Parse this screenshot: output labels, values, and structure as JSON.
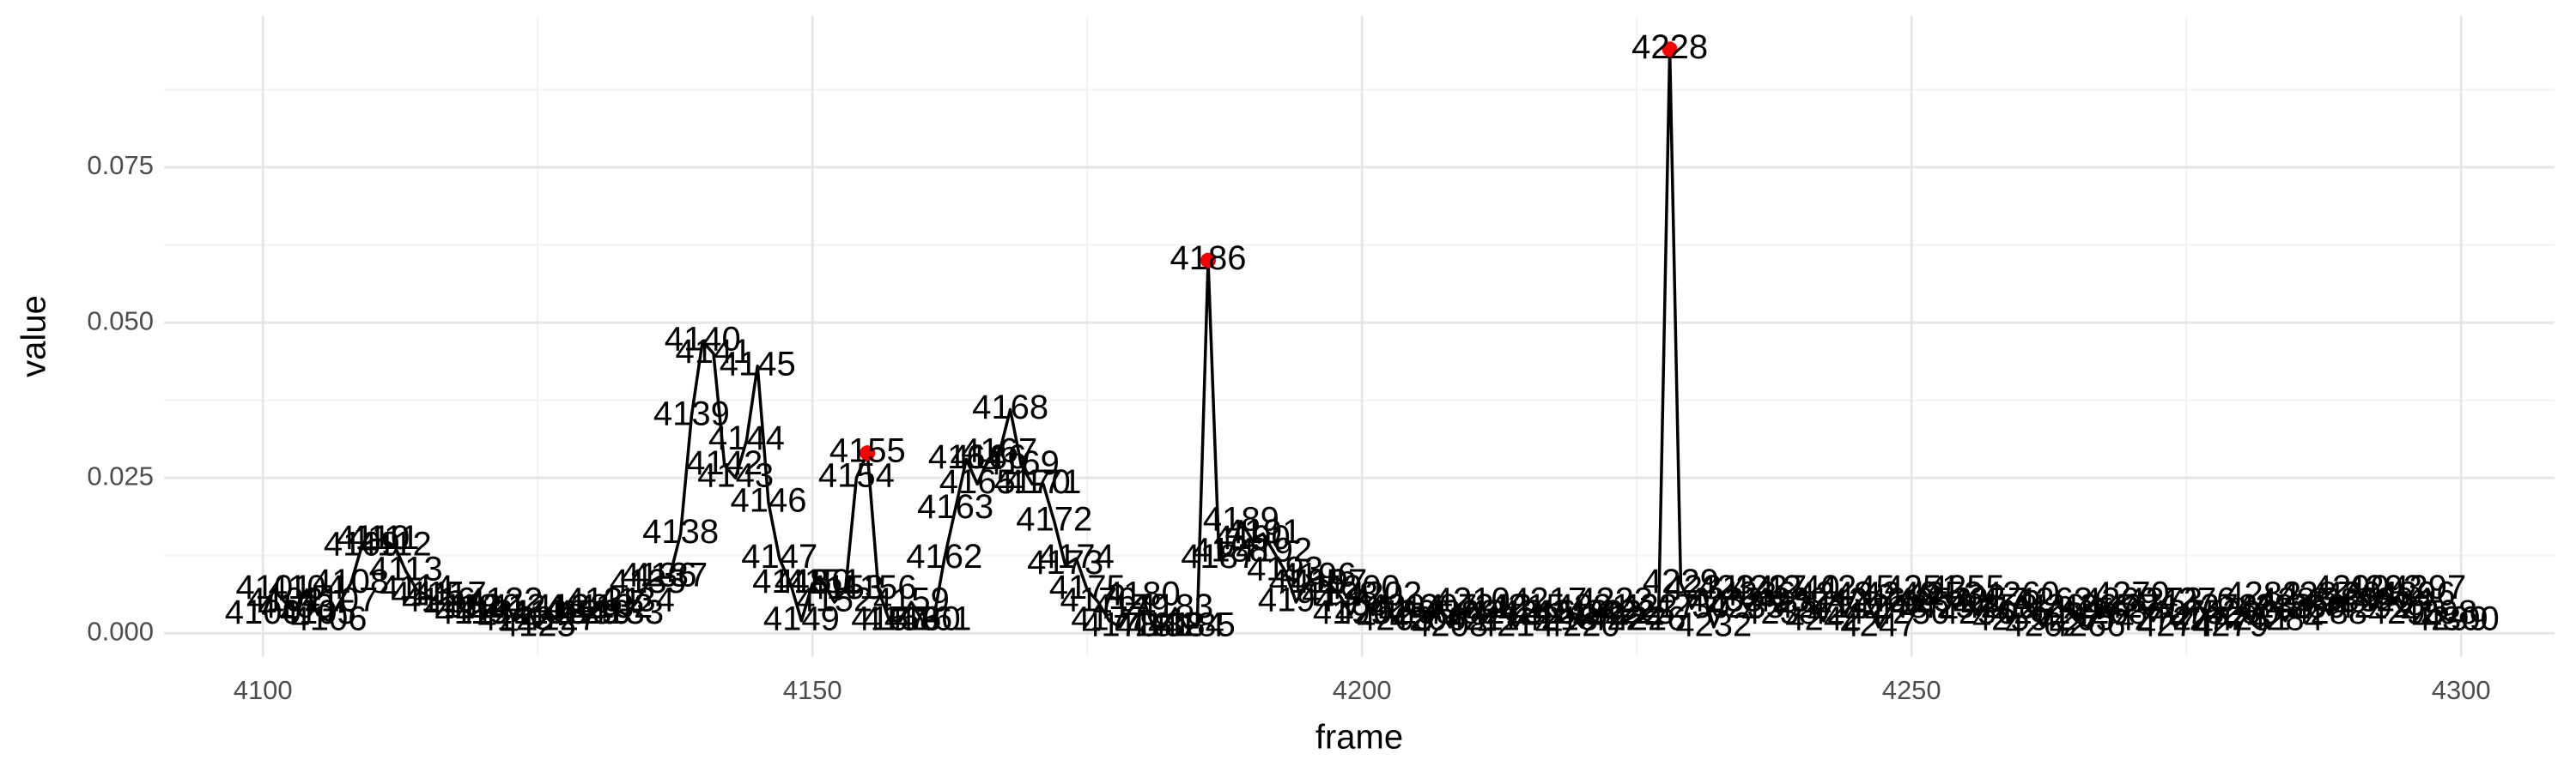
{
  "chart_data": {
    "type": "line",
    "x_label": "frame",
    "y_label": "value",
    "x": [
      4100,
      4101,
      4102,
      4103,
      4104,
      4105,
      4106,
      4107,
      4108,
      4109,
      4110,
      4111,
      4112,
      4113,
      4114,
      4115,
      4116,
      4117,
      4118,
      4119,
      4120,
      4121,
      4122,
      4123,
      4124,
      4125,
      4126,
      4127,
      4128,
      4129,
      4130,
      4131,
      4132,
      4133,
      4134,
      4135,
      4136,
      4137,
      4138,
      4139,
      4140,
      4141,
      4142,
      4143,
      4144,
      4145,
      4146,
      4147,
      4148,
      4149,
      4150,
      4151,
      4152,
      4153,
      4154,
      4155,
      4156,
      4157,
      4158,
      4159,
      4160,
      4161,
      4162,
      4163,
      4164,
      4165,
      4166,
      4167,
      4168,
      4169,
      4170,
      4171,
      4172,
      4173,
      4174,
      4175,
      4176,
      4177,
      4178,
      4179,
      4180,
      4181,
      4182,
      4183,
      4184,
      4185,
      4186,
      4187,
      4188,
      4189,
      4190,
      4191,
      4192,
      4193,
      4194,
      4195,
      4196,
      4197,
      4198,
      4199,
      4200,
      4201,
      4202,
      4203,
      4204,
      4205,
      4206,
      4207,
      4208,
      4209,
      4210,
      4211,
      4212,
      4213,
      4214,
      4215,
      4216,
      4217,
      4218,
      4219,
      4220,
      4221,
      4222,
      4223,
      4224,
      4225,
      4226,
      4227,
      4228,
      4229,
      4230,
      4231,
      4232,
      4233,
      4234,
      4235,
      4236,
      4237,
      4238,
      4239,
      4240,
      4241,
      4242,
      4243,
      4244,
      4245,
      4246,
      4247,
      4248,
      4249,
      4250,
      4251,
      4252,
      4253,
      4254,
      4255,
      4256,
      4257,
      4258,
      4259,
      4260,
      4261,
      4262,
      4263,
      4264,
      4265,
      4266,
      4267,
      4268,
      4269,
      4270,
      4271,
      4272,
      4273,
      4274,
      4275,
      4276,
      4277,
      4278,
      4279,
      4280,
      4281,
      4282,
      4283,
      4284,
      4285,
      4286,
      4287,
      4288,
      4289,
      4290,
      4291,
      4292,
      4293,
      4294,
      4295,
      4296,
      4297,
      4298,
      4299,
      4300
    ],
    "values": [
      0.003,
      0.007,
      0.005,
      0.004,
      0.007,
      0.003,
      0.002,
      0.005,
      0.008,
      0.014,
      0.015,
      0.015,
      0.014,
      0.01,
      0.007,
      0.006,
      0.005,
      0.006,
      0.004,
      0.003,
      0.004,
      0.003,
      0.005,
      0.002,
      0.004,
      0.001,
      0.003,
      0.002,
      0.004,
      0.003,
      0.003,
      0.005,
      0.004,
      0.003,
      0.005,
      0.008,
      0.009,
      0.009,
      0.016,
      0.035,
      0.047,
      0.045,
      0.027,
      0.025,
      0.031,
      0.043,
      0.021,
      0.012,
      0.008,
      0.002,
      0.008,
      0.008,
      0.005,
      0.007,
      0.025,
      0.029,
      0.007,
      0.002,
      0.002,
      0.005,
      0.002,
      0.002,
      0.012,
      0.02,
      0.028,
      0.024,
      0.028,
      0.029,
      0.036,
      0.027,
      0.024,
      0.024,
      0.018,
      0.011,
      0.012,
      0.007,
      0.005,
      0.002,
      0.001,
      0.004,
      0.006,
      0.001,
      0.001,
      0.004,
      0.001,
      0.001,
      0.06,
      0.012,
      0.013,
      0.018,
      0.015,
      0.016,
      0.013,
      0.01,
      0.005,
      0.008,
      0.009,
      0.008,
      0.006,
      0.003,
      0.007,
      0.003,
      0.006,
      0.002,
      0.004,
      0.003,
      0.002,
      0.004,
      0.001,
      0.003,
      0.005,
      0.002,
      0.004,
      0.003,
      0.001,
      0.004,
      0.003,
      0.005,
      0.002,
      0.003,
      0.001,
      0.004,
      0.003,
      0.005,
      0.002,
      0.003,
      0.002,
      0.004,
      0.094,
      0.008,
      0.004,
      0.007,
      0.001,
      0.005,
      0.007,
      0.004,
      0.006,
      0.007,
      0.003,
      0.005,
      0.007,
      0.004,
      0.002,
      0.006,
      0.003,
      0.007,
      0.005,
      0.001,
      0.004,
      0.006,
      0.003,
      0.007,
      0.005,
      0.006,
      0.004,
      0.007,
      0.003,
      0.005,
      0.004,
      0.002,
      0.006,
      0.003,
      0.001,
      0.005,
      0.004,
      0.002,
      0.001,
      0.004,
      0.003,
      0.005,
      0.006,
      0.004,
      0.002,
      0.005,
      0.001,
      0.003,
      0.005,
      0.002,
      0.004,
      0.001,
      0.003,
      0.002,
      0.006,
      0.004,
      0.002,
      0.005,
      0.004,
      0.006,
      0.003,
      0.005,
      0.007,
      0.006,
      0.004,
      0.007,
      0.005,
      0.003,
      0.006,
      0.007,
      0.003,
      0.002,
      0.002
    ],
    "color": "#000000",
    "points": {
      "x": [
        4155,
        4186,
        4228
      ],
      "values": [
        0.029,
        0.06,
        0.094
      ],
      "color": "#ff0000"
    },
    "xlim": [
      4091,
      4308.5
    ],
    "xticks": [
      4100,
      4150,
      4200,
      4250,
      4300
    ],
    "ylim": [
      -0.0037,
      0.0993
    ],
    "yticks": [
      {
        "value": 0,
        "label": "0.000"
      },
      {
        "value": 0.025,
        "label": "0.025"
      },
      {
        "value": 0.05,
        "label": "0.050"
      },
      {
        "value": 0.075,
        "label": "0.075"
      }
    ],
    "grid": true
  }
}
